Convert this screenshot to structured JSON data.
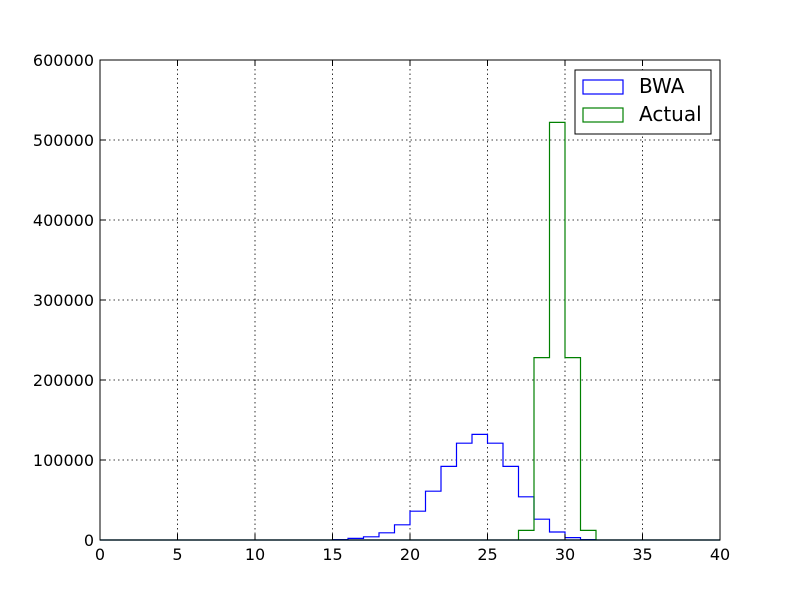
{
  "chart_data": {
    "type": "histogram",
    "title": "",
    "xlabel": "",
    "ylabel": "",
    "xlim": [
      0,
      40
    ],
    "ylim": [
      0,
      600000
    ],
    "x_ticks": [
      0,
      5,
      10,
      15,
      20,
      25,
      30,
      35,
      40
    ],
    "y_ticks": [
      0,
      100000,
      200000,
      300000,
      400000,
      500000,
      600000
    ],
    "grid": true,
    "legend_position": "top-right",
    "bin_width": 1,
    "series": [
      {
        "name": "BWA",
        "color": "#0000ff",
        "bins": [
          {
            "x0": 15,
            "x1": 16,
            "value": 500
          },
          {
            "x0": 16,
            "x1": 17,
            "value": 2000
          },
          {
            "x0": 17,
            "x1": 18,
            "value": 4000
          },
          {
            "x0": 18,
            "x1": 19,
            "value": 9000
          },
          {
            "x0": 19,
            "x1": 20,
            "value": 19000
          },
          {
            "x0": 20,
            "x1": 21,
            "value": 36000
          },
          {
            "x0": 21,
            "x1": 22,
            "value": 61000
          },
          {
            "x0": 22,
            "x1": 23,
            "value": 92000
          },
          {
            "x0": 23,
            "x1": 24,
            "value": 121000
          },
          {
            "x0": 24,
            "x1": 25,
            "value": 132000
          },
          {
            "x0": 25,
            "x1": 26,
            "value": 121000
          },
          {
            "x0": 26,
            "x1": 27,
            "value": 92000
          },
          {
            "x0": 27,
            "x1": 28,
            "value": 54000
          },
          {
            "x0": 28,
            "x1": 29,
            "value": 26000
          },
          {
            "x0": 29,
            "x1": 30,
            "value": 10000
          },
          {
            "x0": 30,
            "x1": 31,
            "value": 3000
          },
          {
            "x0": 31,
            "x1": 32,
            "value": 500
          }
        ]
      },
      {
        "name": "Actual",
        "color": "#008000",
        "bins": [
          {
            "x0": 27,
            "x1": 28,
            "value": 12000
          },
          {
            "x0": 28,
            "x1": 29,
            "value": 228000
          },
          {
            "x0": 29,
            "x1": 30,
            "value": 522000
          },
          {
            "x0": 30,
            "x1": 31,
            "value": 228000
          },
          {
            "x0": 31,
            "x1": 32,
            "value": 12000
          }
        ]
      }
    ]
  }
}
